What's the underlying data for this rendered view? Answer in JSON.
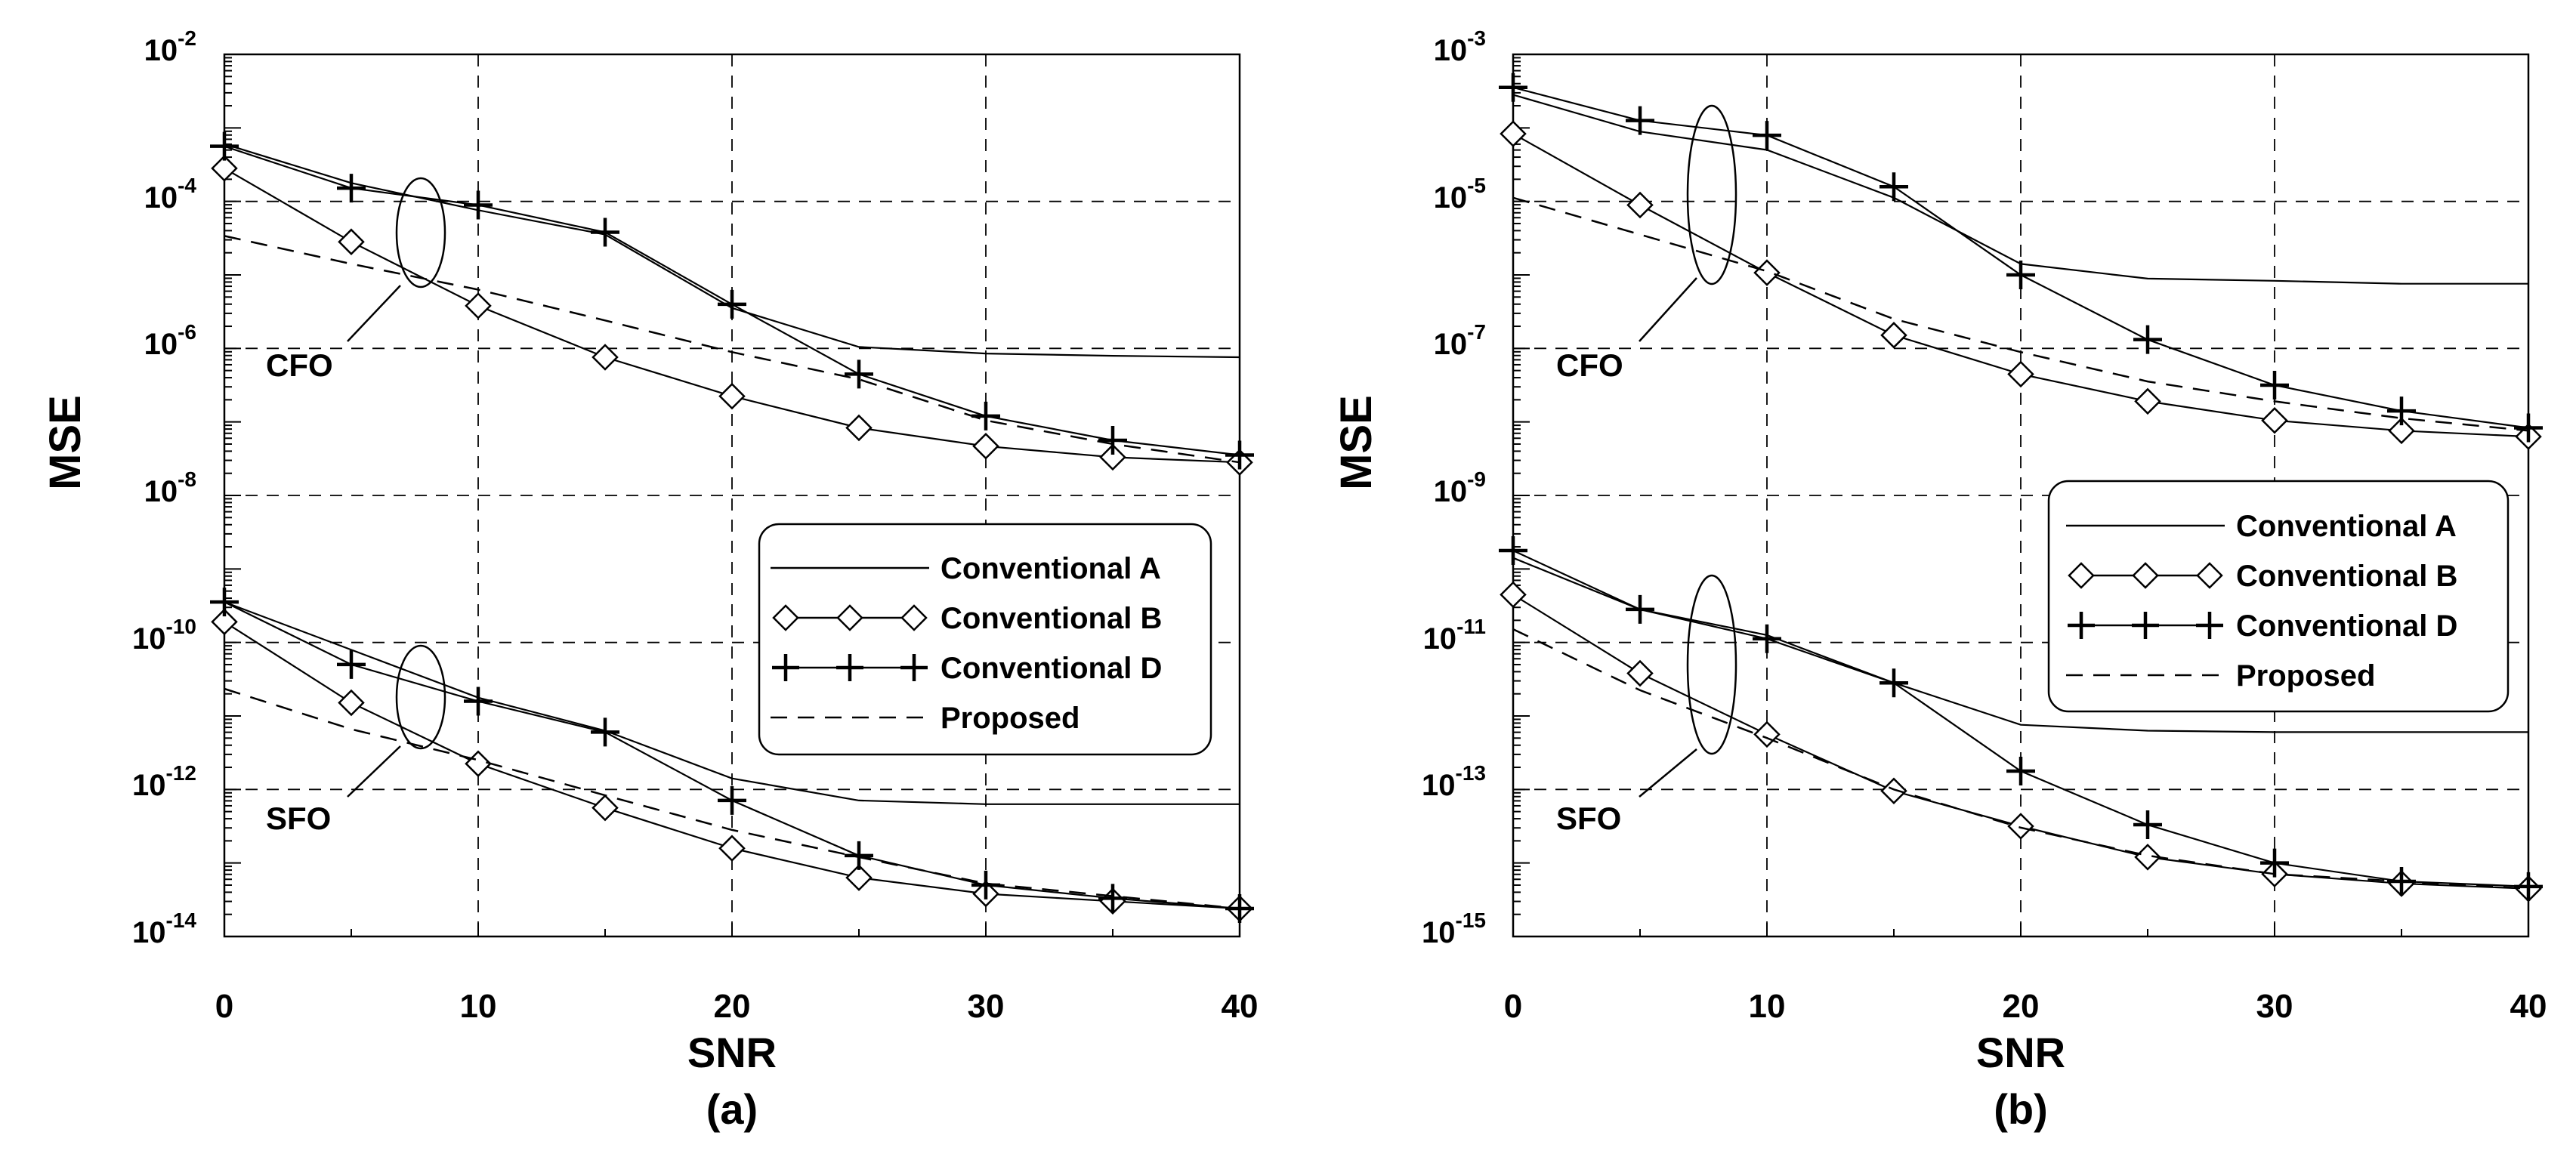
{
  "chart_data": [
    {
      "type": "line",
      "panel_label": "(a)",
      "xlabel": "SNR",
      "ylabel": "MSE",
      "x": [
        0,
        5,
        10,
        15,
        20,
        25,
        30,
        35,
        40
      ],
      "xlim": [
        0,
        40
      ],
      "xticks": [
        "0",
        "10",
        "20",
        "30",
        "40"
      ],
      "ylim_log10": [
        -14,
        -2
      ],
      "yticks": [
        {
          "base": "10",
          "exp": "-2"
        },
        {
          "base": "10",
          "exp": "-4"
        },
        {
          "base": "10",
          "exp": "-6"
        },
        {
          "base": "10",
          "exp": "-8"
        },
        {
          "base": "10",
          "exp": "-10"
        },
        {
          "base": "10",
          "exp": "-12"
        },
        {
          "base": "10",
          "exp": "-14"
        }
      ],
      "grid": true,
      "groups": [
        {
          "name": "CFO",
          "series": [
            {
              "name": "Conventional A",
              "log10_values": [
                -3.22,
                -3.75,
                -4.12,
                -4.45,
                -5.45,
                -5.98,
                -6.07,
                -6.1,
                -6.12
              ]
            },
            {
              "name": "Conventional B",
              "log10_values": [
                -3.55,
                -4.55,
                -5.42,
                -6.12,
                -6.65,
                -7.08,
                -7.33,
                -7.48,
                -7.55
              ]
            },
            {
              "name": "Conventional D",
              "log10_values": [
                -3.25,
                -3.82,
                -4.05,
                -4.42,
                -5.4,
                -6.35,
                -6.92,
                -7.25,
                -7.45
              ]
            },
            {
              "name": "Proposed",
              "log10_values": [
                -4.47,
                -4.85,
                -5.2,
                -5.62,
                -6.05,
                -6.42,
                -6.98,
                -7.3,
                -7.55
              ]
            }
          ]
        },
        {
          "name": "SFO",
          "series": [
            {
              "name": "Conventional A",
              "log10_values": [
                -9.45,
                -10.1,
                -10.75,
                -11.2,
                -11.85,
                -12.15,
                -12.2,
                -12.2,
                -12.2
              ]
            },
            {
              "name": "Conventional B",
              "log10_values": [
                -9.72,
                -10.82,
                -11.65,
                -12.25,
                -12.8,
                -13.2,
                -13.42,
                -13.52,
                -13.62
              ]
            },
            {
              "name": "Conventional D",
              "log10_values": [
                -9.45,
                -10.3,
                -10.8,
                -11.22,
                -12.15,
                -12.9,
                -13.3,
                -13.48,
                -13.62
              ]
            },
            {
              "name": "Proposed",
              "log10_values": [
                -10.63,
                -11.18,
                -11.6,
                -12.08,
                -12.55,
                -12.92,
                -13.28,
                -13.45,
                -13.62
              ]
            }
          ]
        }
      ],
      "legend": {
        "placement": "center-right",
        "entries": [
          "Conventional A",
          "Conventional B",
          "Conventional D",
          "Proposed"
        ]
      }
    },
    {
      "type": "line",
      "panel_label": "(b)",
      "xlabel": "SNR",
      "ylabel": "MSE",
      "x": [
        0,
        5,
        10,
        15,
        20,
        25,
        30,
        35,
        40
      ],
      "xlim": [
        0,
        40
      ],
      "xticks": [
        "0",
        "10",
        "20",
        "30",
        "40"
      ],
      "ylim_log10": [
        -15,
        -3
      ],
      "yticks": [
        {
          "base": "10",
          "exp": "-3"
        },
        {
          "base": "10",
          "exp": "-5"
        },
        {
          "base": "10",
          "exp": "-7"
        },
        {
          "base": "10",
          "exp": "-9"
        },
        {
          "base": "10",
          "exp": "-11"
        },
        {
          "base": "10",
          "exp": "-13"
        },
        {
          "base": "10",
          "exp": "-15"
        }
      ],
      "grid": true,
      "groups": [
        {
          "name": "CFO",
          "series": [
            {
              "name": "Conventional A",
              "log10_values": [
                -3.55,
                -4.05,
                -4.3,
                -4.95,
                -5.85,
                -6.05,
                -6.08,
                -6.12,
                -6.12
              ]
            },
            {
              "name": "Conventional B",
              "log10_values": [
                -4.08,
                -5.05,
                -5.97,
                -6.82,
                -7.35,
                -7.72,
                -7.98,
                -8.12,
                -8.2
              ]
            },
            {
              "name": "Conventional D",
              "log10_values": [
                -3.45,
                -3.9,
                -4.1,
                -4.8,
                -6.0,
                -6.88,
                -7.5,
                -7.85,
                -8.08
              ]
            },
            {
              "name": "Proposed",
              "log10_values": [
                -4.95,
                -5.45,
                -5.95,
                -6.6,
                -7.05,
                -7.45,
                -7.72,
                -7.95,
                -8.12
              ]
            }
          ]
        },
        {
          "name": "SFO",
          "series": [
            {
              "name": "Conventional A",
              "log10_values": [
                -9.85,
                -10.55,
                -10.9,
                -11.55,
                -12.12,
                -12.2,
                -12.22,
                -12.22,
                -12.22
              ]
            },
            {
              "name": "Conventional B",
              "log10_values": [
                -10.35,
                -11.42,
                -12.25,
                -13.02,
                -13.5,
                -13.92,
                -14.15,
                -14.28,
                -14.35
              ]
            },
            {
              "name": "Conventional D",
              "log10_values": [
                -9.75,
                -10.55,
                -10.95,
                -11.55,
                -12.75,
                -13.48,
                -14.0,
                -14.25,
                -14.32
              ]
            },
            {
              "name": "Proposed",
              "log10_values": [
                -10.82,
                -11.65,
                -12.3,
                -13.0,
                -13.52,
                -13.9,
                -14.15,
                -14.25,
                -14.35
              ]
            }
          ]
        }
      ],
      "legend": {
        "placement": "center-right",
        "entries": [
          "Conventional A",
          "Conventional B",
          "Conventional D",
          "Proposed"
        ]
      }
    }
  ]
}
